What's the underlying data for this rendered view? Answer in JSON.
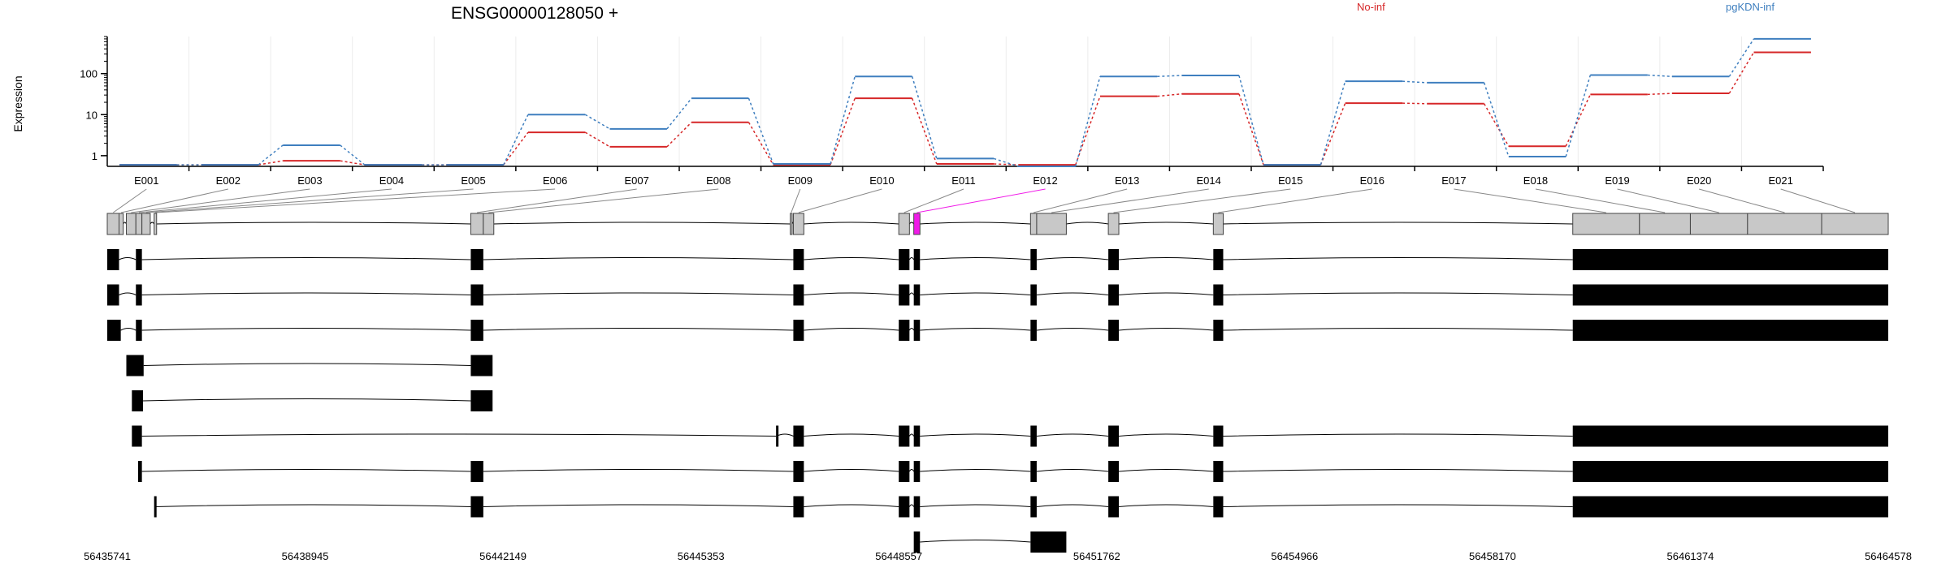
{
  "chart_data": {
    "type": "line",
    "title": "ENSG00000128050 +",
    "ylabel": "Expression",
    "xlabel": "",
    "y_scale": "log",
    "ylim": [
      0.55,
      800
    ],
    "y_ticks": [
      "1",
      "10",
      "100"
    ],
    "y_tick_values": [
      1,
      10,
      100
    ],
    "grid": "vertical, light",
    "legend": "top, inline text",
    "categories": [
      "E001",
      "E002",
      "E003",
      "E004",
      "E005",
      "E006",
      "E007",
      "E008",
      "E009",
      "E010",
      "E011",
      "E012",
      "E013",
      "E014",
      "E015",
      "E016",
      "E017",
      "E018",
      "E019",
      "E020",
      "E021"
    ],
    "series": [
      {
        "name": "No-inf",
        "color": "#d62728",
        "values": [
          0.6,
          0.6,
          0.75,
          0.6,
          0.6,
          3.7,
          1.65,
          6.5,
          0.6,
          25,
          0.63,
          0.6,
          28,
          32,
          0.6,
          19,
          18.5,
          1.7,
          31,
          33,
          330
        ]
      },
      {
        "name": "pgKDN-inf",
        "color": "#3f7fbf",
        "values": [
          0.6,
          0.6,
          1.8,
          0.6,
          0.6,
          10,
          4.5,
          25,
          0.63,
          85,
          0.85,
          0.55,
          85,
          90,
          0.6,
          65,
          60,
          0.95,
          92,
          85,
          700
        ]
      }
    ],
    "highlight_color": "#f01ae8",
    "highlight_exon": "E012",
    "genomic_axis": {
      "tick_labels": [
        "56435741",
        "56438945",
        "56442149",
        "56445353",
        "56448557",
        "56451762",
        "56454966",
        "56458170",
        "56461374",
        "56464578"
      ],
      "tick_values": [
        56435741,
        56438945,
        56442149,
        56445353,
        56448557,
        56451762,
        56454966,
        56458170,
        56461374,
        56464578
      ],
      "range": [
        56435741,
        56464578
      ]
    },
    "exons": [
      {
        "id": "E001",
        "start": 56435741,
        "end": 56435932
      },
      {
        "id": "E002",
        "start": 56435932,
        "end": 56436000
      },
      {
        "id": "E003",
        "start": 56436050,
        "end": 56436205
      },
      {
        "id": "E004",
        "start": 56436205,
        "end": 56436302
      },
      {
        "id": "E005",
        "start": 56436302,
        "end": 56436437
      },
      {
        "id": "E006",
        "start": 56436500,
        "end": 56436540
      },
      {
        "id": "E007",
        "start": 56441627,
        "end": 56441830
      },
      {
        "id": "E008",
        "start": 56441830,
        "end": 56442000
      },
      {
        "id": "E009",
        "start": 56446800,
        "end": 56446830
      },
      {
        "id": "E010",
        "start": 56446850,
        "end": 56447020
      },
      {
        "id": "E011",
        "start": 56448557,
        "end": 56448730
      },
      {
        "id": "E012",
        "start": 56448800,
        "end": 56448900
      },
      {
        "id": "E013",
        "start": 56450690,
        "end": 56450790
      },
      {
        "id": "E014",
        "start": 56450790,
        "end": 56451270
      },
      {
        "id": "E015",
        "start": 56451950,
        "end": 56452120
      },
      {
        "id": "E016",
        "start": 56453650,
        "end": 56453810
      },
      {
        "id": "E017",
        "start": 56459470,
        "end": 56460550
      },
      {
        "id": "E018",
        "start": 56460550,
        "end": 56461374
      },
      {
        "id": "E019",
        "start": 56461374,
        "end": 56462300
      },
      {
        "id": "E020",
        "start": 56462300,
        "end": 56463500
      },
      {
        "id": "E021",
        "start": 56463500,
        "end": 56464578
      }
    ],
    "transcripts": [
      {
        "exons": [
          [
            56435741,
            56435932
          ],
          [
            56436205,
            56436302
          ],
          [
            56441627,
            56441830
          ],
          [
            56446850,
            56447020
          ],
          [
            56448557,
            56448730
          ],
          [
            56448800,
            56448900
          ],
          [
            56450690,
            56450790
          ],
          [
            56451950,
            56452120
          ],
          [
            56453650,
            56453810
          ],
          [
            56459470,
            56464578
          ]
        ]
      },
      {
        "exons": [
          [
            56435741,
            56435932
          ],
          [
            56436205,
            56436302
          ],
          [
            56441627,
            56441830
          ],
          [
            56446850,
            56447020
          ],
          [
            56448557,
            56448730
          ],
          [
            56448800,
            56448900
          ],
          [
            56450690,
            56450790
          ],
          [
            56451950,
            56452120
          ],
          [
            56453650,
            56453810
          ],
          [
            56459470,
            56464578
          ]
        ]
      },
      {
        "exons": [
          [
            56435741,
            56435960
          ],
          [
            56436205,
            56436302
          ],
          [
            56441627,
            56441830
          ],
          [
            56446850,
            56447020
          ],
          [
            56448557,
            56448730
          ],
          [
            56448800,
            56448900
          ],
          [
            56450690,
            56450790
          ],
          [
            56451950,
            56452120
          ],
          [
            56453650,
            56453810
          ],
          [
            56459470,
            56464578
          ]
        ]
      },
      {
        "exons": [
          [
            56436050,
            56436330
          ],
          [
            56441627,
            56441980
          ]
        ]
      },
      {
        "exons": [
          [
            56436140,
            56436320
          ],
          [
            56441627,
            56441980
          ]
        ]
      },
      {
        "exons": [
          [
            56436140,
            56436302
          ],
          [
            56446570,
            56446575
          ],
          [
            56446850,
            56447020
          ],
          [
            56448557,
            56448730
          ],
          [
            56448800,
            56448900
          ],
          [
            56450690,
            56450790
          ],
          [
            56451950,
            56452120
          ],
          [
            56453650,
            56453810
          ],
          [
            56459470,
            56464578
          ]
        ]
      },
      {
        "exons": [
          [
            56436240,
            56436302
          ],
          [
            56441627,
            56441830
          ],
          [
            56446850,
            56447020
          ],
          [
            56448557,
            56448730
          ],
          [
            56448800,
            56448900
          ],
          [
            56450690,
            56450790
          ],
          [
            56451950,
            56452120
          ],
          [
            56453650,
            56453810
          ],
          [
            56459470,
            56464578
          ]
        ]
      },
      {
        "exons": [
          [
            56436500,
            56436520
          ],
          [
            56441627,
            56441830
          ],
          [
            56446850,
            56447020
          ],
          [
            56448557,
            56448730
          ],
          [
            56448800,
            56448900
          ],
          [
            56450690,
            56450790
          ],
          [
            56451950,
            56452120
          ],
          [
            56453650,
            56453810
          ],
          [
            56459470,
            56464578
          ]
        ]
      },
      {
        "exons": [
          [
            56448800,
            56448900
          ],
          [
            56450690,
            56451270
          ]
        ]
      }
    ]
  }
}
